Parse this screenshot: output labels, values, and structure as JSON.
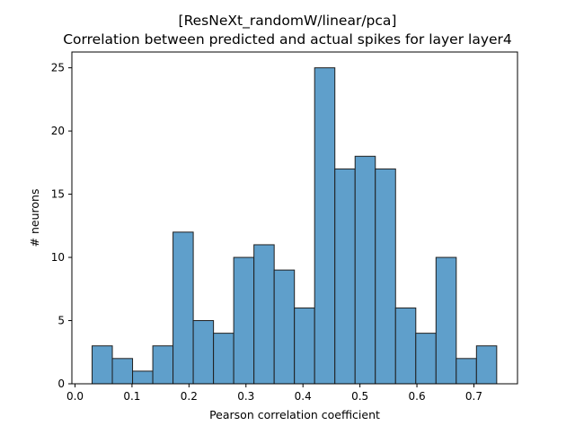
{
  "chart_data": {
    "type": "bar",
    "title_line1": "[ResNeXt_randomW/linear/pca]",
    "title_line2": "Correlation between predicted and actual spikes for layer layer4",
    "xlabel": "Pearson correlation coefficient",
    "ylabel": "# neurons",
    "xlim": [
      -0.0055,
      0.7765
    ],
    "ylim": [
      0,
      26.25
    ],
    "xticks": [
      0.0,
      0.1,
      0.2,
      0.3,
      0.4,
      0.5,
      0.6,
      0.7
    ],
    "xtick_labels": [
      "0.0",
      "0.1",
      "0.2",
      "0.3",
      "0.4",
      "0.5",
      "0.6",
      "0.7"
    ],
    "yticks": [
      0,
      5,
      10,
      15,
      20,
      25
    ],
    "ytick_labels": [
      "0",
      "5",
      "10",
      "15",
      "20",
      "25"
    ],
    "bin_edges": [
      0.03,
      0.0655,
      0.101,
      0.1365,
      0.172,
      0.2075,
      0.243,
      0.2785,
      0.314,
      0.3495,
      0.385,
      0.4205,
      0.456,
      0.4915,
      0.527,
      0.5625,
      0.598,
      0.6335,
      0.669,
      0.7045,
      0.74
    ],
    "values": [
      3,
      2,
      1,
      3,
      12,
      5,
      4,
      10,
      11,
      9,
      6,
      25,
      17,
      18,
      17,
      6,
      4,
      10,
      2,
      3
    ],
    "bar_color": "#5f9fcb",
    "edge_color": "#1f1f1f",
    "grid": false,
    "legend": false
  }
}
